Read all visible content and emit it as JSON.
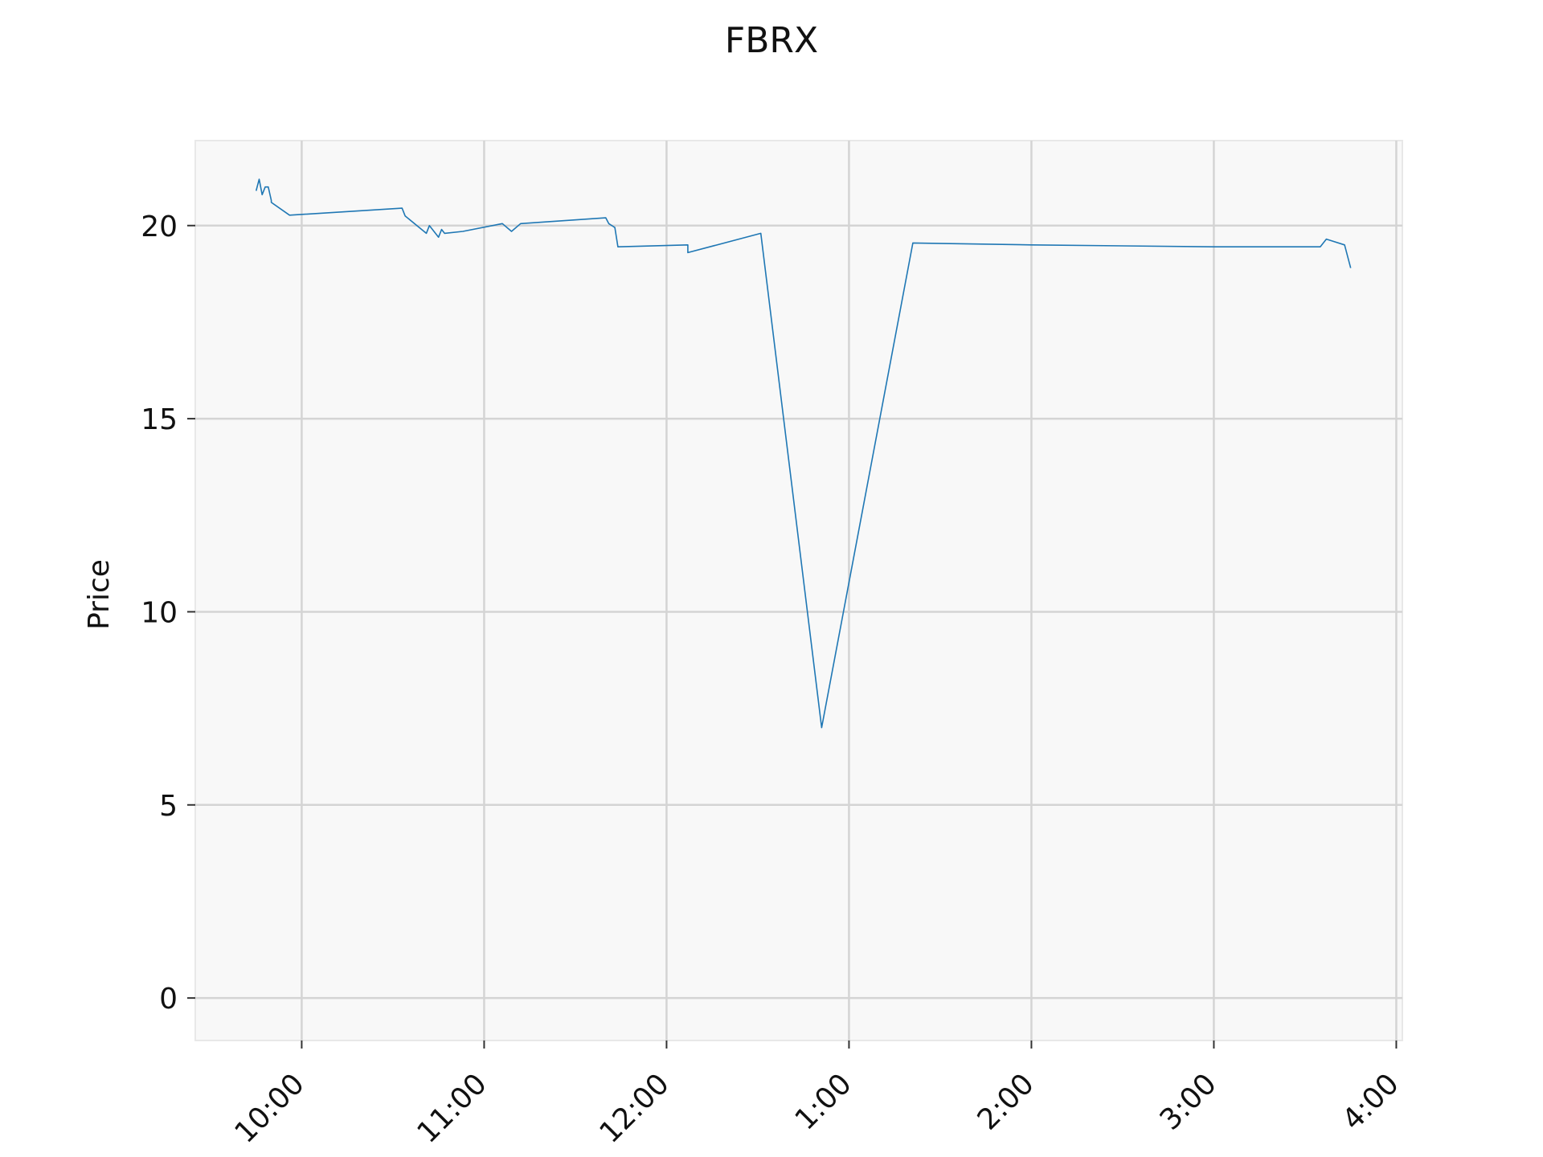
{
  "chart_data": {
    "type": "line",
    "title": "FBRX",
    "xlabel": "",
    "ylabel": "Price",
    "x_unit": "time of day",
    "xlim": [
      "9:25",
      "4:02"
    ],
    "ylim": [
      -1.1,
      22.2
    ],
    "x_ticks": [
      "10:00",
      "11:00",
      "12:00",
      "1:00",
      "2:00",
      "3:00",
      "4:00"
    ],
    "y_ticks": [
      0,
      5,
      10,
      15,
      20
    ],
    "grid": true,
    "legend": false,
    "colors": {
      "line": "#1f77b4",
      "plot_background": "#f8f8f8",
      "grid": "#d4d4d4"
    },
    "series": [
      {
        "x": [
          "9:45",
          "9:46",
          "9:47",
          "9:48",
          "9:49",
          "9:50",
          "9:50",
          "9:56",
          "10:33",
          "10:34",
          "10:41",
          "10:42",
          "10:45",
          "10:46",
          "10:47",
          "10:53",
          "11:06",
          "11:09",
          "11:12",
          "11:40",
          "11:41",
          "11:43",
          "11:44",
          "11:44",
          "12:07",
          "12:07",
          "12:31",
          "12:51",
          "12:51",
          "1:21",
          "2:00",
          "3:00",
          "3:35",
          "3:37",
          "3:43",
          "3:45"
        ],
        "y": [
          20.9,
          21.2,
          20.8,
          21.0,
          21.0,
          20.65,
          20.6,
          20.27,
          20.45,
          20.25,
          19.8,
          20.0,
          19.7,
          19.9,
          19.8,
          19.85,
          20.05,
          19.85,
          20.05,
          20.2,
          20.05,
          19.95,
          19.45,
          19.45,
          19.5,
          19.3,
          19.8,
          7.0,
          7.0,
          19.55,
          19.5,
          19.45,
          19.45,
          19.65,
          19.5,
          18.9
        ]
      }
    ]
  }
}
